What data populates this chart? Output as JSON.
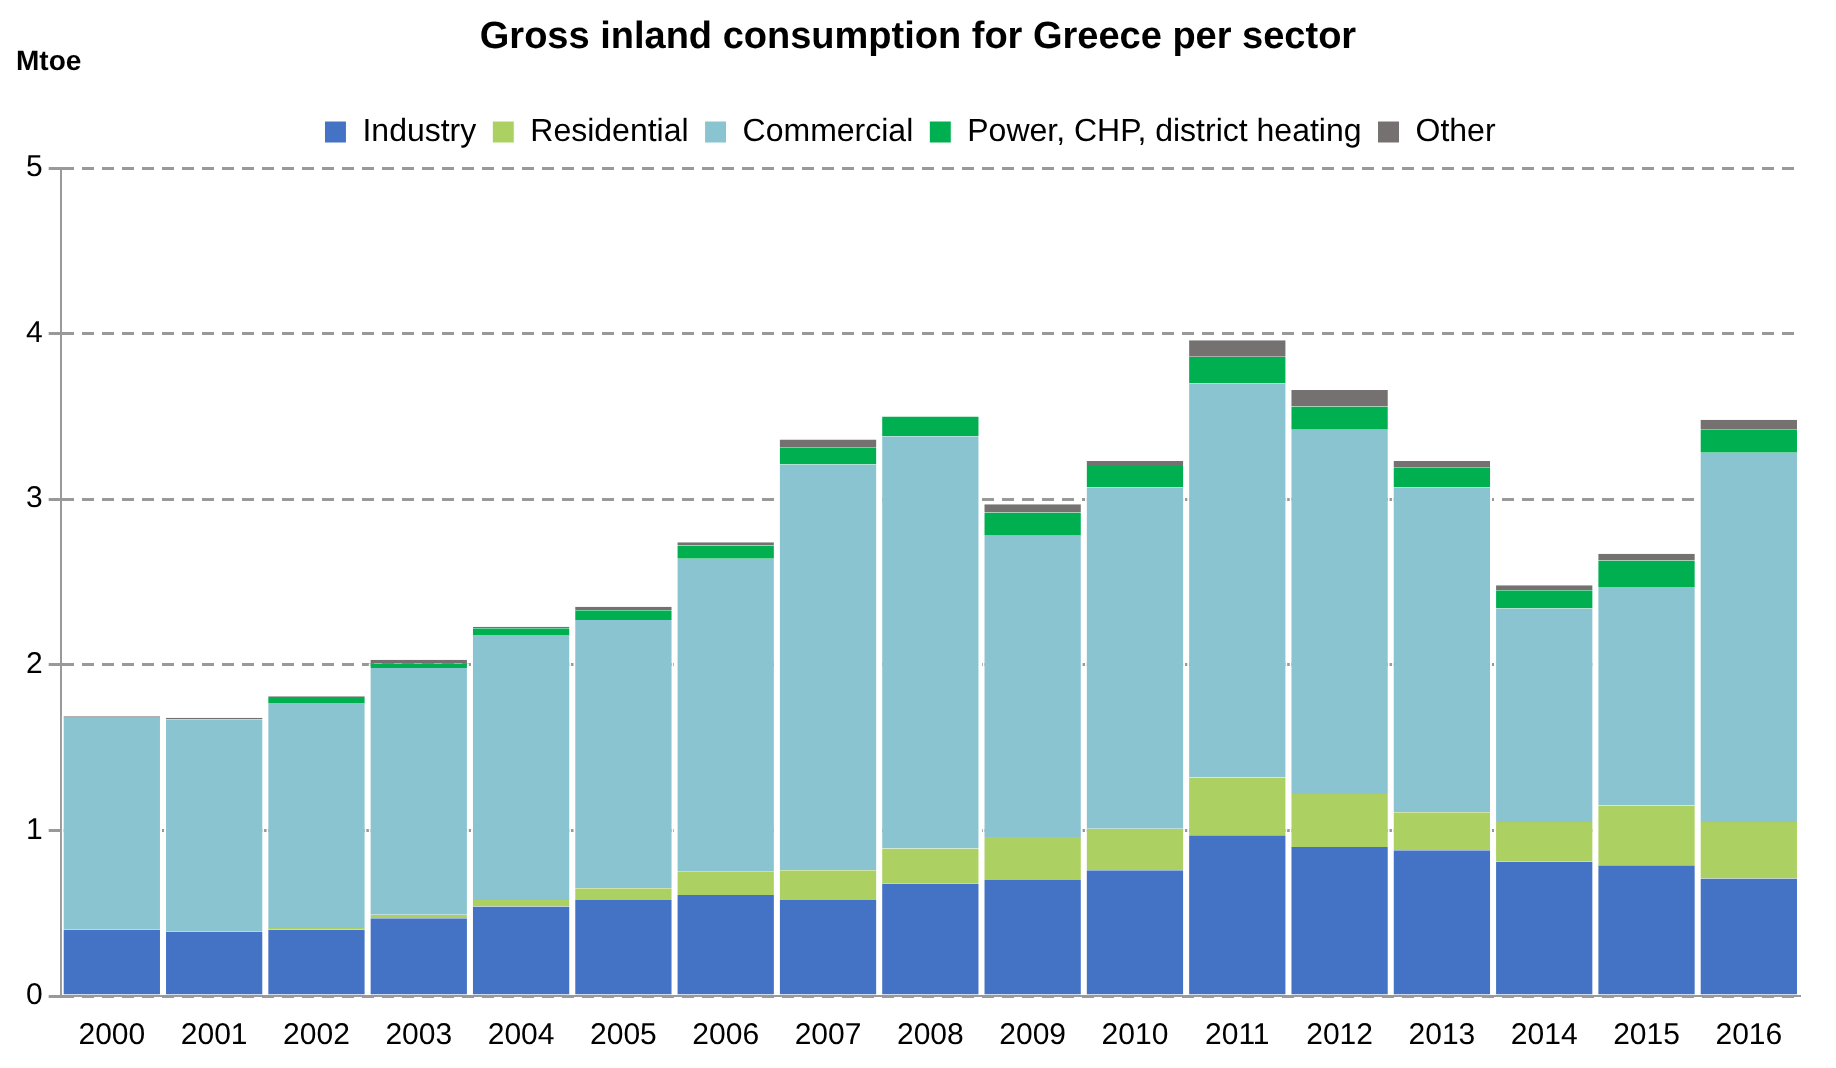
{
  "chart_data": {
    "type": "bar",
    "title": "Gross inland consumption for Greece per sector",
    "ylabel": "Mtoe",
    "categories": [
      "2000",
      "2001",
      "2002",
      "2003",
      "2004",
      "2005",
      "2006",
      "2007",
      "2008",
      "2009",
      "2010",
      "2011",
      "2012",
      "2013",
      "2014",
      "2015",
      "2016"
    ],
    "series": [
      {
        "name": "Industry",
        "color": "#4472c4",
        "values": [
          0.4,
          0.39,
          0.4,
          0.47,
          0.54,
          0.58,
          0.61,
          0.58,
          0.68,
          0.7,
          0.76,
          0.97,
          0.9,
          0.88,
          0.81,
          0.79,
          0.71
        ]
      },
      {
        "name": "Residential",
        "color": "#acd162",
        "values": [
          null,
          0.0,
          0.01,
          0.02,
          0.04,
          0.07,
          0.14,
          0.18,
          0.21,
          0.26,
          0.25,
          0.35,
          0.32,
          0.23,
          0.24,
          0.36,
          0.34
        ]
      },
      {
        "name": "Commercial",
        "color": "#8bc4d1",
        "values": [
          1.28,
          1.28,
          1.36,
          1.49,
          1.6,
          1.62,
          1.89,
          2.45,
          2.49,
          1.82,
          2.06,
          2.38,
          2.2,
          1.96,
          1.29,
          1.32,
          2.23
        ]
      },
      {
        "name": "Power, CHP, district heating",
        "color": "#00b050",
        "values": [
          null,
          0.0,
          0.03,
          0.03,
          0.04,
          0.06,
          0.08,
          0.1,
          0.12,
          0.14,
          0.13,
          0.16,
          0.14,
          0.12,
          0.11,
          0.16,
          0.14
        ]
      },
      {
        "name": "Other",
        "color": "#767171",
        "values": [
          0.01,
          0.01,
          0.01,
          0.02,
          0.01,
          0.02,
          0.02,
          0.05,
          0.0,
          0.05,
          0.03,
          0.1,
          0.1,
          0.04,
          0.03,
          0.04,
          0.06
        ]
      }
    ],
    "stacked": true,
    "ylim": [
      0,
      5
    ],
    "yticks": [
      0,
      1,
      2,
      3,
      4,
      5
    ],
    "grid": "y",
    "legend": "top"
  }
}
